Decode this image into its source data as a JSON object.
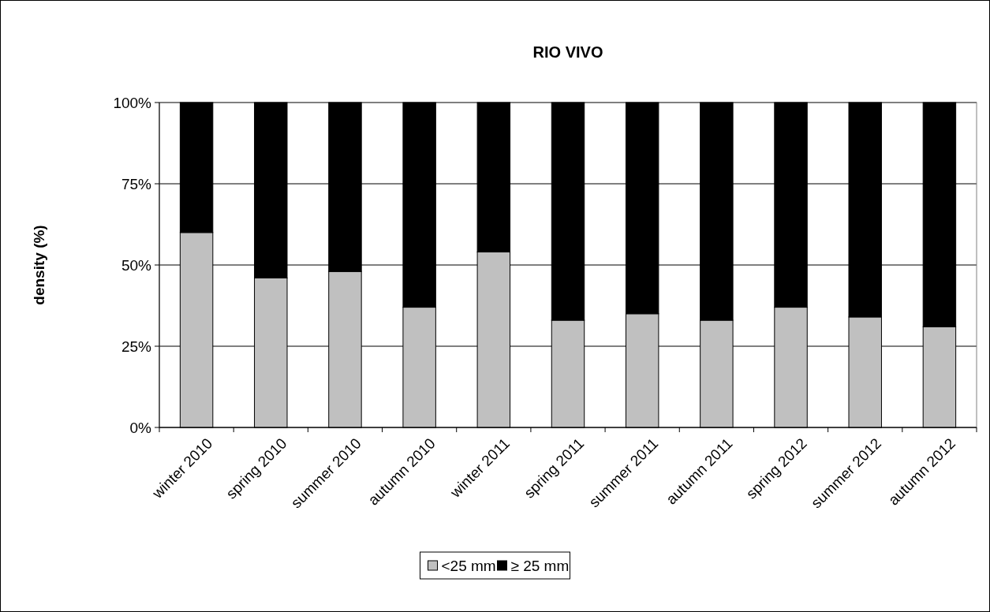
{
  "chart_data": {
    "type": "bar",
    "title": "RIO VIVO",
    "ylabel": "density (%)",
    "stacked": true,
    "categories": [
      "winter 2010",
      "spring 2010",
      "summer 2010",
      "autumn 2010",
      "winter 2011",
      "spring 2011",
      "summer 2011",
      "autumn 2011",
      "spring 2012",
      "summer 2012",
      "autumn 2012"
    ],
    "series": [
      {
        "name": "<25 mm",
        "color": "#c0c0c0",
        "values": [
          60,
          46,
          48,
          37,
          54,
          33,
          35,
          33,
          37,
          34,
          31
        ]
      },
      {
        "name": "≥ 25 mm",
        "color": "#000000",
        "values": [
          40,
          54,
          52,
          63,
          46,
          67,
          65,
          67,
          63,
          66,
          69
        ]
      }
    ],
    "ylim": [
      0,
      100
    ],
    "yticks": [
      {
        "value": 0,
        "label": "0%"
      },
      {
        "value": 25,
        "label": "25%"
      },
      {
        "value": 50,
        "label": "50%"
      },
      {
        "value": 75,
        "label": "75%"
      },
      {
        "value": 100,
        "label": "100%"
      }
    ],
    "grid": "y",
    "legend": "bottom"
  }
}
